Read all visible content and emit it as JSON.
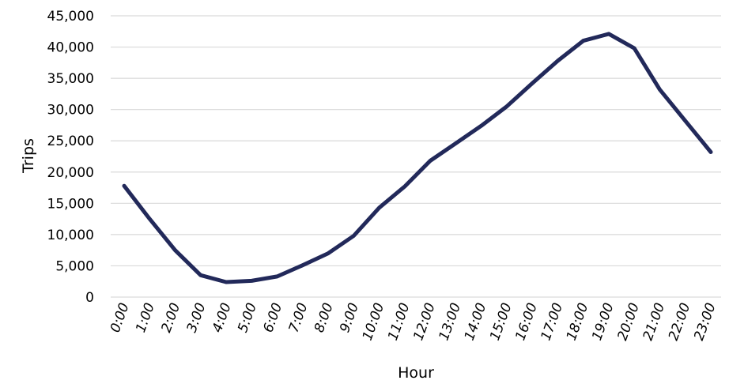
{
  "chart_data": {
    "type": "line",
    "xlabel": "Hour",
    "ylabel": "Trips",
    "ylim": [
      0,
      45000
    ],
    "y_ticks": [
      "0",
      "5,000",
      "10,000",
      "15,000",
      "20,000",
      "25,000",
      "30,000",
      "35,000",
      "40,000",
      "45,000"
    ],
    "y_tick_values": [
      0,
      5000,
      10000,
      15000,
      20000,
      25000,
      30000,
      35000,
      40000,
      45000
    ],
    "categories": [
      "0:00",
      "1:00",
      "2:00",
      "3:00",
      "4:00",
      "5:00",
      "6:00",
      "7:00",
      "8:00",
      "9:00",
      "10:00",
      "11:00",
      "12:00",
      "13:00",
      "14:00",
      "15:00",
      "16:00",
      "17:00",
      "18:00",
      "19:00",
      "20:00",
      "21:00",
      "22:00",
      "23:00"
    ],
    "series": [
      {
        "values": [
          17800,
          12500,
          7500,
          3500,
          2400,
          2600,
          3300,
          5100,
          7000,
          9800,
          14300,
          17700,
          21800,
          24600,
          27400,
          30500,
          34200,
          37800,
          41000,
          42100,
          39800,
          33200,
          28200,
          23200
        ],
        "color": "#22295a"
      }
    ],
    "grid": "horizontal",
    "legend": "none"
  }
}
